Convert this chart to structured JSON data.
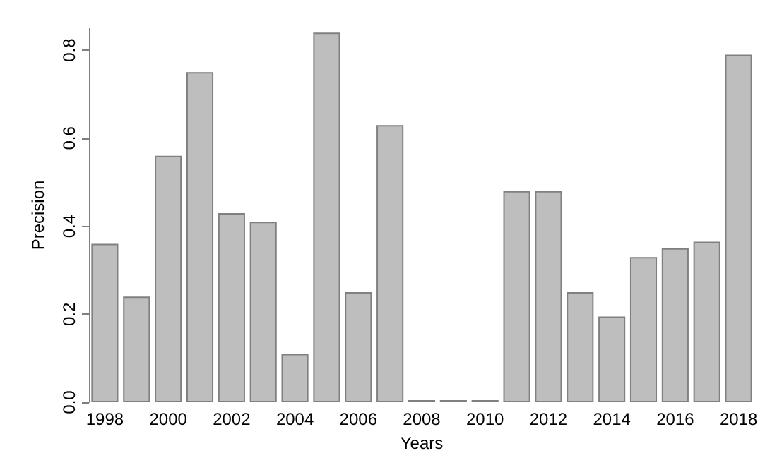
{
  "chart_data": {
    "type": "bar",
    "xlabel": "Years",
    "ylabel": "Precision",
    "categories": [
      "1998",
      null,
      "2000",
      null,
      "2002",
      null,
      "2004",
      null,
      "2006",
      null,
      "2008",
      null,
      "2010",
      null,
      "2012",
      null,
      "2014",
      null,
      "2016",
      null,
      "2018"
    ],
    "values": [
      0.36,
      0.24,
      0.56,
      0.75,
      0.43,
      0.41,
      0.11,
      0.84,
      0.25,
      0.63,
      0.005,
      0.005,
      0.005,
      0.48,
      0.48,
      0.25,
      0.195,
      0.33,
      0.35,
      0.365,
      0.79
    ],
    "color": "#bebebe",
    "ylim": [
      0,
      0.85
    ],
    "yticks": [
      {
        "value": 0,
        "label": "0.0"
      },
      {
        "value": 0.2,
        "label": "0.2"
      },
      {
        "value": 0.4,
        "label": "0.4"
      },
      {
        "value": 0.6,
        "label": "0.6"
      },
      {
        "value": 0.8,
        "label": "0.8"
      }
    ],
    "grid": false
  }
}
